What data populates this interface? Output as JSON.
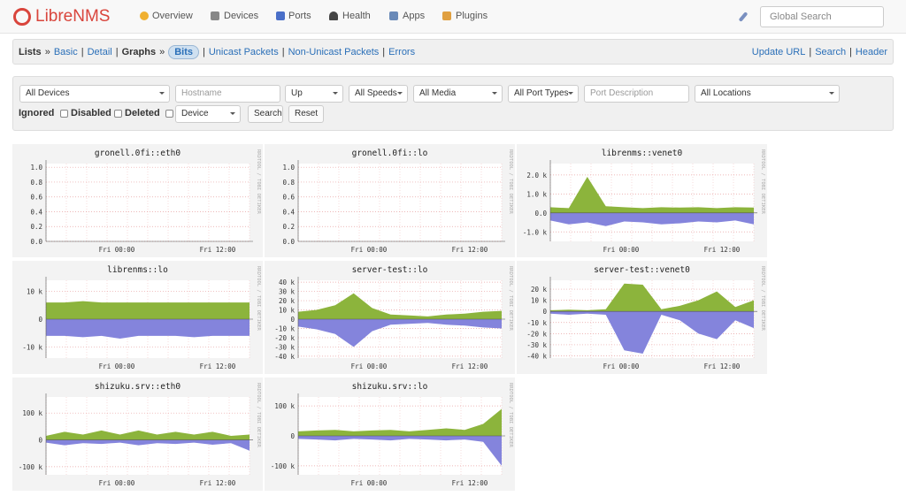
{
  "nav": {
    "brand": "LibreNMS",
    "items": [
      "Overview",
      "Devices",
      "Ports",
      "Health",
      "Apps",
      "Plugins"
    ],
    "search_placeholder": "Global Search"
  },
  "breadcrumb": {
    "left": [
      "Lists",
      "Basic",
      "Detail",
      "Graphs",
      "Bits",
      "Unicast Packets",
      "Non-Unicast Packets",
      "Errors"
    ],
    "left_separators": [
      "»",
      "|",
      "|",
      "»",
      "|",
      "|",
      "|"
    ],
    "right": [
      "Update URL",
      "Search",
      "Header"
    ],
    "right_separators": [
      "|",
      "|"
    ]
  },
  "filters": {
    "device": "All Devices",
    "hostname": "Hostname",
    "state": "Up",
    "speed": "All Speeds",
    "media": "All Media",
    "port_type": "All Port Types",
    "description": "Port Description",
    "location": "All Locations",
    "ignored": "Ignored",
    "disabled": "Disabled",
    "deleted": "Deleted",
    "sort": "Device",
    "search": "Search",
    "reset": "Reset"
  },
  "graph_credit": "RRDTOOL / TOBI OETIKER",
  "chart_data": [
    {
      "type": "area",
      "title": "gronell.0fi::eth0",
      "ylim": [
        0,
        1.05
      ],
      "yticks": [
        {
          "value": 0,
          "label": "0.0"
        },
        {
          "value": 0.2,
          "label": "0.2"
        },
        {
          "value": 0.4,
          "label": "0.4"
        },
        {
          "value": 0.6,
          "label": "0.6"
        },
        {
          "value": 0.8,
          "label": "0.8"
        },
        {
          "value": 1,
          "label": "1.0"
        }
      ],
      "x_labels": [
        "Fri 00:00",
        "Fri 12:00"
      ],
      "series": []
    },
    {
      "type": "area",
      "title": "gronell.0fi::lo",
      "ylim": [
        0,
        1.05
      ],
      "yticks": [
        {
          "value": 0,
          "label": "0.0"
        },
        {
          "value": 0.2,
          "label": "0.2"
        },
        {
          "value": 0.4,
          "label": "0.4"
        },
        {
          "value": 0.6,
          "label": "0.6"
        },
        {
          "value": 0.8,
          "label": "0.8"
        },
        {
          "value": 1,
          "label": "1.0"
        }
      ],
      "x_labels": [
        "Fri 00:00",
        "Fri 12:00"
      ],
      "series": []
    },
    {
      "type": "area",
      "title": "librenms::venet0",
      "ylim": [
        -1500,
        2600
      ],
      "yticks": [
        {
          "value": -1000,
          "label": "-1.0 k"
        },
        {
          "value": 0,
          "label": "0.0"
        },
        {
          "value": 1000,
          "label": "1.0 k"
        },
        {
          "value": 2000,
          "label": "2.0 k"
        }
      ],
      "x_labels": [
        "Fri 00:00",
        "Fri 12:00"
      ],
      "series": [
        {
          "color": "#8cb43c",
          "values": [
            300,
            250,
            1900,
            350,
            300,
            250,
            300,
            280,
            300,
            250,
            300,
            280
          ]
        },
        {
          "color": "#8484dc",
          "values": [
            -400,
            -600,
            -500,
            -700,
            -450,
            -500,
            -600,
            -550,
            -450,
            -500,
            -400,
            -600
          ]
        }
      ]
    },
    {
      "type": "area",
      "title": "librenms::lo",
      "ylim": [
        -14000,
        14000
      ],
      "yticks": [
        {
          "value": -10000,
          "label": "-10 k"
        },
        0,
        {
          "value": 10000,
          "label": "10 k"
        }
      ],
      "x_labels": [
        "Fri 00:00",
        "Fri 12:00"
      ],
      "series": [
        {
          "color": "#8cb43c",
          "values": [
            6000,
            6000,
            6500,
            6000,
            6000,
            6000,
            6000,
            6000,
            6000,
            6000,
            6000,
            6000
          ]
        },
        {
          "color": "#8484dc",
          "values": [
            -6000,
            -6000,
            -6500,
            -6000,
            -7000,
            -6000,
            -6000,
            -6000,
            -6500,
            -6000,
            -6000,
            -6000
          ]
        }
      ]
    },
    {
      "type": "area",
      "title": "server-test::lo",
      "ylim": [
        -42000,
        42000
      ],
      "yticks": [
        {
          "value": -40000,
          "label": "-40 k"
        },
        {
          "value": -30000,
          "label": "-30 k"
        },
        {
          "value": -20000,
          "label": "-20 k"
        },
        {
          "value": -10000,
          "label": "-10 k"
        },
        0,
        {
          "value": 10000,
          "label": "10 k"
        },
        {
          "value": 20000,
          "label": "20 k"
        },
        {
          "value": 30000,
          "label": "30 k"
        },
        {
          "value": 40000,
          "label": "40 k"
        }
      ],
      "x_labels": [
        "Fri 00:00",
        "Fri 12:00"
      ],
      "series": [
        {
          "color": "#8cb43c",
          "values": [
            8000,
            10000,
            15000,
            28000,
            12000,
            5000,
            4000,
            3000,
            5000,
            6000,
            8000,
            9000
          ]
        },
        {
          "color": "#8484dc",
          "values": [
            -8000,
            -11000,
            -16000,
            -30000,
            -13000,
            -6000,
            -5000,
            -4000,
            -6000,
            -7000,
            -9000,
            -10000
          ]
        }
      ]
    },
    {
      "type": "area",
      "title": "server-test::venet0",
      "ylim": [
        -42000,
        28000
      ],
      "yticks": [
        {
          "value": -40000,
          "label": "-40 k"
        },
        {
          "value": -30000,
          "label": "-30 k"
        },
        {
          "value": -20000,
          "label": "-20 k"
        },
        {
          "value": -10000,
          "label": "-10 k"
        },
        0,
        {
          "value": 10000,
          "label": "10 k"
        },
        {
          "value": 20000,
          "label": "20 k"
        }
      ],
      "x_labels": [
        "Fri 00:00",
        "Fri 12:00"
      ],
      "series": [
        {
          "color": "#8cb43c",
          "values": [
            1000,
            1500,
            1000,
            2000,
            25000,
            24000,
            2000,
            5000,
            10000,
            18000,
            4000,
            10000
          ]
        },
        {
          "color": "#8484dc",
          "values": [
            -2000,
            -3000,
            -2000,
            -3000,
            -35000,
            -38000,
            -3000,
            -8000,
            -20000,
            -25000,
            -8000,
            -15000
          ]
        }
      ]
    },
    {
      "type": "area",
      "title": "shizuku.srv::eth0",
      "ylim": [
        -130000,
        160000
      ],
      "yticks": [
        {
          "value": -100000,
          "label": "-100 k"
        },
        0,
        {
          "value": 100000,
          "label": "100 k"
        }
      ],
      "x_labels": [
        "Fri 00:00",
        "Fri 12:00"
      ],
      "series": [
        {
          "color": "#8cb43c",
          "values": [
            15000,
            30000,
            20000,
            35000,
            20000,
            35000,
            20000,
            30000,
            20000,
            30000,
            15000,
            20000
          ]
        },
        {
          "color": "#8484dc",
          "values": [
            -10000,
            -20000,
            -12000,
            -15000,
            -10000,
            -20000,
            -12000,
            -15000,
            -10000,
            -18000,
            -12000,
            -40000
          ]
        }
      ]
    },
    {
      "type": "area",
      "title": "shizuku.srv::lo",
      "ylim": [
        -130000,
        130000
      ],
      "yticks": [
        {
          "value": -100000,
          "label": "-100 k"
        },
        0,
        {
          "value": 100000,
          "label": "100 k"
        }
      ],
      "x_labels": [
        "Fri 00:00",
        "Fri 12:00"
      ],
      "series": [
        {
          "color": "#8cb43c",
          "values": [
            15000,
            18000,
            20000,
            15000,
            18000,
            20000,
            15000,
            20000,
            25000,
            20000,
            40000,
            90000
          ]
        },
        {
          "color": "#8484dc",
          "values": [
            -10000,
            -12000,
            -15000,
            -10000,
            -12000,
            -15000,
            -10000,
            -12000,
            -15000,
            -12000,
            -20000,
            -100000
          ]
        }
      ]
    }
  ]
}
